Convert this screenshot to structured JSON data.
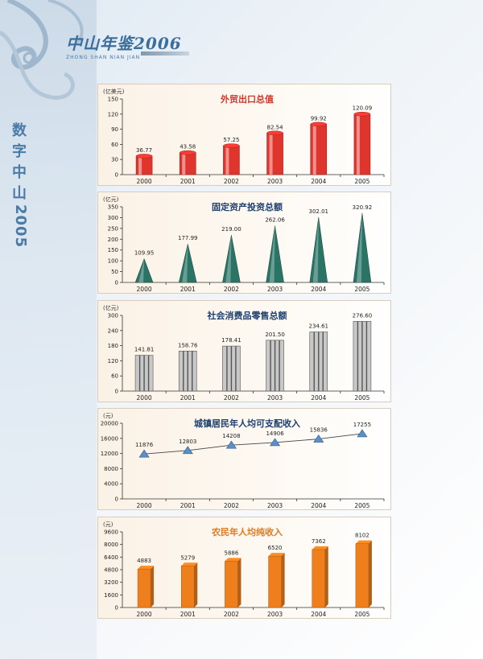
{
  "header": {
    "title": "中山年鉴2006",
    "subtitle": "ZHONG SHAN NIAN JIAN"
  },
  "side_title": {
    "chars": [
      "数",
      "字",
      "中",
      "山"
    ],
    "year": "2005"
  },
  "colors": {
    "accent": "#3a6f9c",
    "chart1_title": "#d2352a",
    "chart2_title": "#1d3f6e",
    "chart3_title": "#1d3f6e",
    "chart4_title": "#1d3f6e",
    "chart5_title": "#e07a1f"
  },
  "chart_data": [
    {
      "type": "bar",
      "title": "外贸出口总值",
      "ylabel": "(亿美元)",
      "categories": [
        "2000",
        "2001",
        "2002",
        "2003",
        "2004",
        "2005"
      ],
      "values": [
        36.77,
        43.58,
        57.25,
        82.54,
        99.92,
        120.09
      ],
      "value_labels": [
        "36.77",
        "43.58",
        "57.25",
        "82.54",
        "99.92",
        "120.09"
      ],
      "ylim": [
        0,
        150
      ],
      "yticks": [
        "0",
        "30",
        "60",
        "90",
        "120",
        "150"
      ],
      "ytick_values": [
        0,
        30,
        60,
        90,
        120,
        150
      ],
      "color": "#e0352c",
      "mark": "cylinder"
    },
    {
      "type": "bar",
      "title": "固定资产投资总额",
      "ylabel": "(亿元)",
      "categories": [
        "2000",
        "2001",
        "2002",
        "2003",
        "2004",
        "2005"
      ],
      "values": [
        109.95,
        177.99,
        219.0,
        262.06,
        302.01,
        320.92
      ],
      "value_labels": [
        "109.95",
        "177.99",
        "219.00",
        "262.06",
        "302.01",
        "320.92"
      ],
      "ylim": [
        0,
        350
      ],
      "yticks": [
        "0",
        "50",
        "100",
        "150",
        "200",
        "250",
        "300",
        "350"
      ],
      "ytick_values": [
        0,
        50,
        100,
        150,
        200,
        250,
        300,
        350
      ],
      "color": "#2a7466",
      "mark": "cone"
    },
    {
      "type": "bar",
      "title": "社会消费品零售总额",
      "ylabel": "(亿元)",
      "categories": [
        "2000",
        "2001",
        "2002",
        "2003",
        "2004",
        "2005"
      ],
      "values": [
        141.81,
        158.76,
        178.41,
        201.5,
        234.61,
        276.6
      ],
      "value_labels": [
        "141.81",
        "158.76",
        "178.41",
        "201.50",
        "234.61",
        "276.60"
      ],
      "ylim": [
        0,
        300
      ],
      "yticks": [
        "0",
        "60",
        "120",
        "180",
        "240",
        "300"
      ],
      "ytick_values": [
        0,
        60,
        120,
        180,
        240,
        300
      ],
      "color": "#c8c8c8",
      "mark": "striped"
    },
    {
      "type": "line",
      "title": "城镇居民年人均可支配收入",
      "ylabel": "(元)",
      "categories": [
        "2000",
        "2001",
        "2002",
        "2003",
        "2004",
        "2005"
      ],
      "values": [
        11876,
        12803,
        14208,
        14906,
        15836,
        17255
      ],
      "value_labels": [
        "11876",
        "12803",
        "14208",
        "14906",
        "15836",
        "17255"
      ],
      "ylim": [
        0,
        20000
      ],
      "yticks": [
        "0",
        "4000",
        "8000",
        "12000",
        "16000",
        "20000"
      ],
      "ytick_values": [
        0,
        4000,
        8000,
        12000,
        16000,
        20000
      ],
      "color": "#5a8fc8",
      "mark": "triangle"
    },
    {
      "type": "bar",
      "title": "农民年人均纯收入",
      "ylabel": "(元)",
      "categories": [
        "2000",
        "2001",
        "2002",
        "2003",
        "2004",
        "2005"
      ],
      "values": [
        4883,
        5279,
        5886,
        6520,
        7362,
        8102
      ],
      "value_labels": [
        "4883",
        "5279",
        "5886",
        "6520",
        "7362",
        "8102"
      ],
      "ylim": [
        0,
        9600
      ],
      "yticks": [
        "0",
        "1600",
        "3200",
        "4800",
        "6400",
        "8000",
        "9600"
      ],
      "ytick_values": [
        0,
        1600,
        3200,
        4800,
        6400,
        8000,
        9600
      ],
      "color": "#ee7f1c",
      "mark": "box"
    }
  ]
}
